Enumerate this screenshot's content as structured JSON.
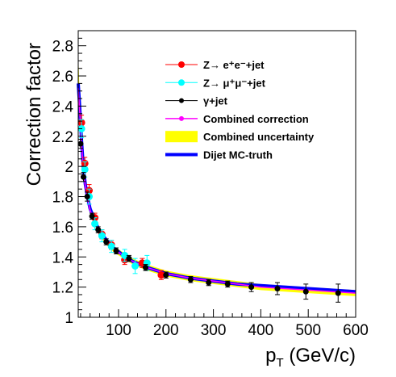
{
  "chart_data": {
    "type": "line",
    "xlabel_main": "p",
    "xlabel_sub": "T",
    "xlabel_rest": " (GeV/c)",
    "ylabel": "Correction factor",
    "xlim": [
      15,
      600
    ],
    "ylim": [
      1.0,
      2.9
    ],
    "xticks": [
      100,
      200,
      300,
      400,
      500,
      600
    ],
    "yticks": [
      1,
      1.2,
      1.4,
      1.6,
      1.8,
      2,
      2.2,
      2.4,
      2.6,
      2.8
    ],
    "legend_position": "top-right",
    "series": [
      {
        "name": "Z→ e⁺e⁻+jet",
        "color": "#ff0000",
        "marker": "circle",
        "points": [
          {
            "x": 22,
            "y": 2.29,
            "err": 0.05
          },
          {
            "x": 29,
            "y": 2.02,
            "err": 0.04
          },
          {
            "x": 38,
            "y": 1.84,
            "err": 0.04
          },
          {
            "x": 50,
            "y": 1.66,
            "err": 0.03
          },
          {
            "x": 65,
            "y": 1.55,
            "err": 0.03
          },
          {
            "x": 85,
            "y": 1.48,
            "err": 0.03
          },
          {
            "x": 113,
            "y": 1.38,
            "err": 0.03
          },
          {
            "x": 150,
            "y": 1.36,
            "err": 0.03
          },
          {
            "x": 190,
            "y": 1.28,
            "err": 0.03
          }
        ]
      },
      {
        "name": "Z→ μ⁺μ⁻+jet",
        "color": "#00ffff",
        "marker": "circle",
        "points": [
          {
            "x": 22,
            "y": 2.25,
            "err": 0.06
          },
          {
            "x": 29,
            "y": 1.98,
            "err": 0.05
          },
          {
            "x": 38,
            "y": 1.8,
            "err": 0.05
          },
          {
            "x": 50,
            "y": 1.62,
            "err": 0.04
          },
          {
            "x": 65,
            "y": 1.54,
            "err": 0.04
          },
          {
            "x": 85,
            "y": 1.47,
            "err": 0.04
          },
          {
            "x": 113,
            "y": 1.41,
            "err": 0.04
          },
          {
            "x": 135,
            "y": 1.34,
            "err": 0.05
          },
          {
            "x": 160,
            "y": 1.36,
            "err": 0.05
          }
        ]
      },
      {
        "name": "γ+jet",
        "color": "#000000",
        "marker": "circle",
        "points": [
          {
            "x": 20,
            "y": 2.15,
            "err": 0.03
          },
          {
            "x": 26,
            "y": 1.93,
            "err": 0.03
          },
          {
            "x": 34,
            "y": 1.8,
            "err": 0.03
          },
          {
            "x": 44,
            "y": 1.67,
            "err": 0.02
          },
          {
            "x": 57,
            "y": 1.58,
            "err": 0.02
          },
          {
            "x": 74,
            "y": 1.5,
            "err": 0.02
          },
          {
            "x": 95,
            "y": 1.44,
            "err": 0.02
          },
          {
            "x": 122,
            "y": 1.39,
            "err": 0.02
          },
          {
            "x": 157,
            "y": 1.33,
            "err": 0.02
          },
          {
            "x": 200,
            "y": 1.28,
            "err": 0.02
          },
          {
            "x": 252,
            "y": 1.25,
            "err": 0.02
          },
          {
            "x": 290,
            "y": 1.23,
            "err": 0.02
          },
          {
            "x": 330,
            "y": 1.22,
            "err": 0.02
          },
          {
            "x": 380,
            "y": 1.2,
            "err": 0.03
          },
          {
            "x": 435,
            "y": 1.19,
            "err": 0.04
          },
          {
            "x": 495,
            "y": 1.17,
            "err": 0.05
          },
          {
            "x": 563,
            "y": 1.16,
            "err": 0.06
          }
        ]
      },
      {
        "name": "Combined correction",
        "color": "#ff00ff",
        "marker": "line",
        "x": [
          15,
          18,
          22,
          26,
          30,
          35,
          40,
          50,
          60,
          75,
          90,
          110,
          130,
          160,
          200,
          250,
          300,
          350,
          400,
          450,
          500,
          550,
          600
        ],
        "y": [
          2.52,
          2.37,
          2.15,
          1.97,
          1.87,
          1.78,
          1.71,
          1.63,
          1.56,
          1.5,
          1.45,
          1.41,
          1.37,
          1.33,
          1.29,
          1.26,
          1.24,
          1.22,
          1.2,
          1.19,
          1.18,
          1.17,
          1.16
        ]
      },
      {
        "name": "Combined uncertainty",
        "color": "#ffff00",
        "marker": "band",
        "x": [
          15,
          18,
          22,
          26,
          30,
          35,
          40,
          50,
          60,
          75,
          90,
          110,
          130,
          160,
          200,
          250,
          300,
          350,
          400,
          450,
          500,
          550,
          600
        ],
        "ylow": [
          2.37,
          2.28,
          2.1,
          1.93,
          1.84,
          1.75,
          1.69,
          1.61,
          1.54,
          1.48,
          1.43,
          1.39,
          1.35,
          1.31,
          1.27,
          1.24,
          1.22,
          1.2,
          1.18,
          1.17,
          1.16,
          1.15,
          1.14
        ],
        "yhigh": [
          2.75,
          2.48,
          2.2,
          2.01,
          1.9,
          1.81,
          1.73,
          1.65,
          1.58,
          1.52,
          1.47,
          1.43,
          1.39,
          1.35,
          1.31,
          1.28,
          1.26,
          1.24,
          1.22,
          1.21,
          1.2,
          1.19,
          1.18
        ]
      },
      {
        "name": "Dijet MC-truth",
        "color": "#0000ff",
        "marker": "line",
        "x": [
          15,
          18,
          22,
          26,
          30,
          35,
          40,
          50,
          60,
          75,
          90,
          110,
          130,
          160,
          200,
          250,
          300,
          350,
          400,
          450,
          500,
          550,
          600
        ],
        "y": [
          2.55,
          2.4,
          2.17,
          1.98,
          1.88,
          1.79,
          1.72,
          1.64,
          1.57,
          1.51,
          1.46,
          1.41,
          1.37,
          1.33,
          1.29,
          1.26,
          1.24,
          1.22,
          1.21,
          1.2,
          1.19,
          1.18,
          1.17
        ]
      }
    ]
  }
}
